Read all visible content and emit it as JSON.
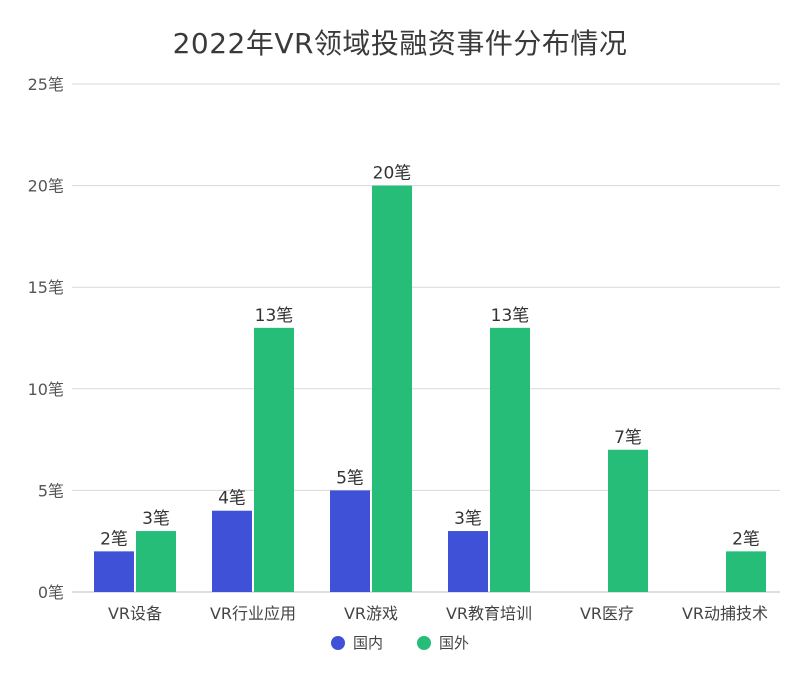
{
  "chart_data": {
    "type": "bar",
    "title": "2022年VR领域投融资事件分布情况",
    "xlabel": "",
    "ylabel": "",
    "ylim": [
      0,
      25
    ],
    "yticks": [
      "0笔",
      "5笔",
      "10笔",
      "15笔",
      "20笔",
      "25笔"
    ],
    "ytick_values": [
      0,
      5,
      10,
      15,
      20,
      25
    ],
    "categories": [
      "VR设备",
      "VR行业应用",
      "VR游戏",
      "VR教育培训",
      "VR医疗",
      "VR动捕技术"
    ],
    "series": [
      {
        "name": "国内",
        "color": "#3f51d6",
        "values": [
          2,
          4,
          5,
          3,
          null,
          null
        ],
        "labels": [
          "2笔",
          "4笔",
          "5笔",
          "3笔",
          "",
          ""
        ]
      },
      {
        "name": "国外",
        "color": "#25bd78",
        "values": [
          3,
          13,
          20,
          13,
          7,
          2
        ],
        "labels": [
          "3笔",
          "13笔",
          "20笔",
          "13笔",
          "7笔",
          "2笔"
        ]
      }
    ],
    "grid": true,
    "legend_position": "bottom"
  }
}
